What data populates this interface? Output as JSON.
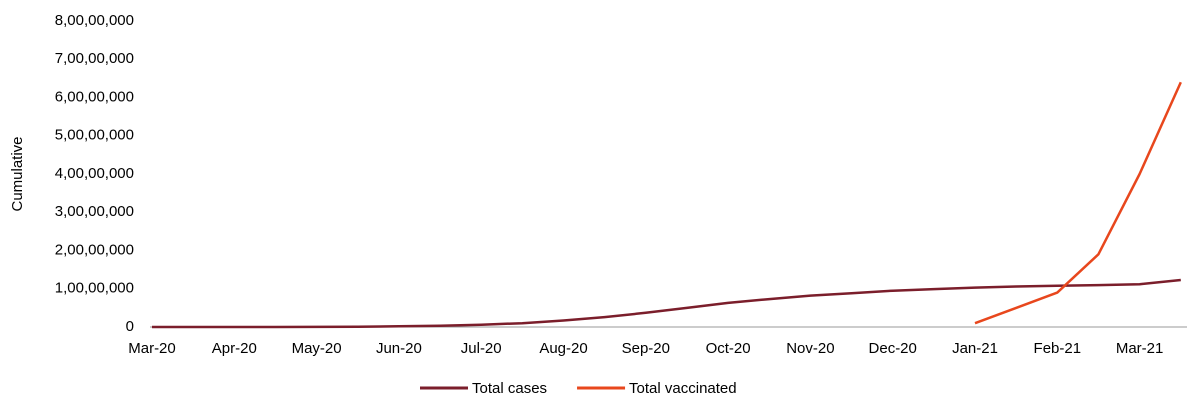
{
  "chart_data": {
    "type": "line",
    "ylabel": "Cumulative",
    "categories": [
      "Mar-20",
      null,
      "Apr-20",
      null,
      "May-20",
      null,
      "Jun-20",
      null,
      "Jul-20",
      null,
      "Aug-20",
      null,
      "Sep-20",
      null,
      "Oct-20",
      null,
      "Nov-20",
      null,
      "Dec-20",
      null,
      "Jan-21",
      null,
      "Feb-21",
      null,
      "Mar-21",
      null
    ],
    "series": [
      {
        "name": "Total cases",
        "color": "#7b1e2b",
        "values": [
          0,
          1000,
          2000,
          12000,
          35000,
          85000,
          190000,
          340000,
          590000,
          1000000,
          1700000,
          2600000,
          3700000,
          5000000,
          6300000,
          7300000,
          8200000,
          8800000,
          9500000,
          9900000,
          10300000,
          10600000,
          10800000,
          10950000,
          11200000,
          12300000
        ]
      },
      {
        "name": "Total vaccinated",
        "color": "#e8471d",
        "values": [
          null,
          null,
          null,
          null,
          null,
          null,
          null,
          null,
          null,
          null,
          null,
          null,
          null,
          null,
          null,
          null,
          null,
          null,
          null,
          null,
          1000000,
          5000000,
          9000000,
          19000000,
          40000000,
          64000000
        ]
      }
    ],
    "ylim": [
      0,
      80000000
    ],
    "yticks": [
      0,
      {
        "value": 10000000,
        "label": "1,00,00,000"
      },
      {
        "value": 20000000,
        "label": "2,00,00,000"
      },
      {
        "value": 30000000,
        "label": "3,00,00,000"
      },
      {
        "value": 40000000,
        "label": "4,00,00,000"
      },
      {
        "value": 50000000,
        "label": "5,00,00,000"
      },
      {
        "value": 60000000,
        "label": "6,00,00,000"
      },
      {
        "value": 70000000,
        "label": "7,00,00,000"
      },
      {
        "value": 80000000,
        "label": "8,00,00,000"
      }
    ],
    "grid": false,
    "legend": "bottom"
  }
}
